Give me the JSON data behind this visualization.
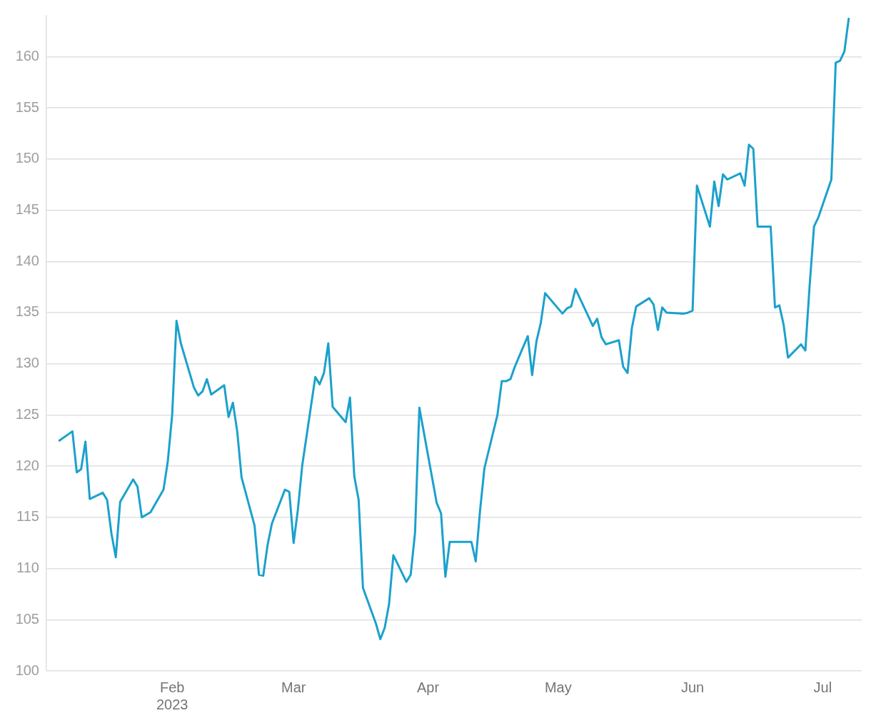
{
  "chart_data": {
    "type": "line",
    "x": [
      "2023-01-06",
      "2023-01-09",
      "2023-01-10",
      "2023-01-11",
      "2023-01-12",
      "2023-01-13",
      "2023-01-16",
      "2023-01-17",
      "2023-01-18",
      "2023-01-19",
      "2023-01-20",
      "2023-01-23",
      "2023-01-24",
      "2023-01-25",
      "2023-01-27",
      "2023-01-30",
      "2023-01-31",
      "2023-02-01",
      "2023-02-02",
      "2023-02-03",
      "2023-02-06",
      "2023-02-07",
      "2023-02-08",
      "2023-02-09",
      "2023-02-10",
      "2023-02-13",
      "2023-02-14",
      "2023-02-15",
      "2023-02-16",
      "2023-02-17",
      "2023-02-20",
      "2023-02-21",
      "2023-02-22",
      "2023-02-23",
      "2023-02-24",
      "2023-02-27",
      "2023-02-28",
      "2023-03-01",
      "2023-03-02",
      "2023-03-03",
      "2023-03-06",
      "2023-03-07",
      "2023-03-08",
      "2023-03-09",
      "2023-03-10",
      "2023-03-13",
      "2023-03-14",
      "2023-03-15",
      "2023-03-16",
      "2023-03-17",
      "2023-03-20",
      "2023-03-21",
      "2023-03-22",
      "2023-03-23",
      "2023-03-24",
      "2023-03-27",
      "2023-03-28",
      "2023-03-29",
      "2023-03-30",
      "2023-04-03",
      "2023-04-04",
      "2023-04-05",
      "2023-04-06",
      "2023-04-11",
      "2023-04-12",
      "2023-04-13",
      "2023-04-14",
      "2023-04-17",
      "2023-04-18",
      "2023-04-19",
      "2023-04-20",
      "2023-04-21",
      "2023-04-24",
      "2023-04-25",
      "2023-04-26",
      "2023-04-27",
      "2023-04-28",
      "2023-05-02",
      "2023-05-03",
      "2023-05-04",
      "2023-05-05",
      "2023-05-09",
      "2023-05-10",
      "2023-05-11",
      "2023-05-12",
      "2023-05-15",
      "2023-05-16",
      "2023-05-17",
      "2023-05-18",
      "2023-05-19",
      "2023-05-22",
      "2023-05-23",
      "2023-05-24",
      "2023-05-25",
      "2023-05-26",
      "2023-05-30",
      "2023-05-31",
      "2023-06-01",
      "2023-06-02",
      "2023-06-05",
      "2023-06-06",
      "2023-06-07",
      "2023-06-08",
      "2023-06-09",
      "2023-06-12",
      "2023-06-13",
      "2023-06-14",
      "2023-06-15",
      "2023-06-16",
      "2023-06-19",
      "2023-06-20",
      "2023-06-21",
      "2023-06-22",
      "2023-06-23",
      "2023-06-26",
      "2023-06-27",
      "2023-06-28",
      "2023-06-29",
      "2023-06-30",
      "2023-07-03",
      "2023-07-04",
      "2023-07-05",
      "2023-07-06",
      "2023-07-07"
    ],
    "series": [
      {
        "color": "#1ba1cc",
        "values": [
          122.5,
          123.4,
          119.4,
          119.7,
          122.4,
          116.8,
          117.4,
          116.7,
          113.4,
          111.1,
          116.5,
          118.7,
          118.0,
          115.0,
          115.5,
          117.7,
          120.5,
          125.0,
          134.2,
          132.0,
          127.7,
          126.9,
          127.3,
          128.5,
          127.0,
          127.9,
          124.8,
          126.2,
          123.4,
          118.9,
          114.2,
          109.4,
          109.3,
          112.3,
          114.4,
          117.7,
          117.5,
          112.5,
          115.8,
          120.1,
          128.7,
          128.0,
          129.1,
          132.0,
          125.8,
          124.3,
          126.7,
          119.0,
          116.7,
          108.1,
          104.6,
          103.1,
          104.2,
          106.5,
          111.3,
          108.7,
          109.4,
          113.5,
          125.7,
          116.4,
          115.4,
          109.2,
          112.6,
          112.6,
          110.7,
          115.7,
          119.8,
          125.0,
          128.3,
          128.3,
          128.5,
          129.7,
          132.7,
          128.9,
          132.2,
          134.0,
          136.9,
          134.9,
          135.4,
          135.6,
          137.3,
          133.7,
          134.4,
          132.6,
          131.9,
          132.3,
          129.7,
          129.1,
          133.5,
          135.6,
          136.4,
          135.8,
          133.3,
          135.5,
          135.0,
          134.9,
          135.0,
          135.2,
          147.4,
          143.4,
          147.8,
          145.4,
          148.5,
          148.0,
          148.6,
          147.4,
          151.4,
          151.0,
          143.4,
          143.4,
          135.5,
          135.7,
          133.8,
          130.6,
          131.9,
          131.3,
          137.7,
          143.4,
          144.3,
          148.0,
          159.4,
          159.6,
          160.5,
          163.7
        ]
      }
    ],
    "xlim": [
      "2023-01-03",
      "2023-07-10"
    ],
    "xticks": [
      {
        "value": "2023-02-01",
        "label": "Feb 2023"
      },
      {
        "value": "2023-03-01",
        "label": "Mar"
      },
      {
        "value": "2023-04-01",
        "label": "Apr"
      },
      {
        "value": "2023-05-01",
        "label": "May"
      },
      {
        "value": "2023-06-01",
        "label": "Jun"
      },
      {
        "value": "2023-07-01",
        "label": "Jul"
      }
    ],
    "ylim": [
      100,
      164
    ],
    "yticks": [
      100,
      105,
      110,
      115,
      120,
      125,
      130,
      135,
      140,
      145,
      150,
      155,
      160
    ],
    "grid": "y",
    "legend": false,
    "marker": "none",
    "line_style": "solid"
  }
}
